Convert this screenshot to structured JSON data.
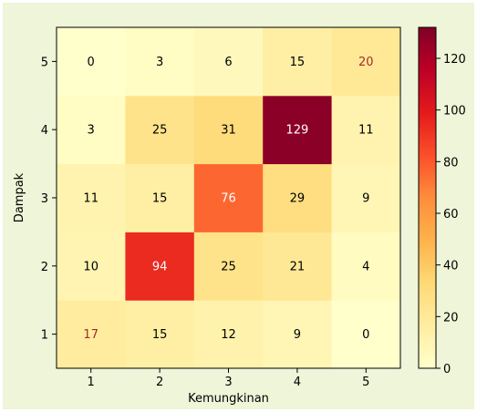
{
  "chart_data": {
    "type": "heatmap",
    "x_categories": [
      "1",
      "2",
      "3",
      "4",
      "5"
    ],
    "y_categories": [
      "1",
      "2",
      "3",
      "4",
      "5"
    ],
    "xlabel": "Kemungkinan",
    "ylabel": "Dampak",
    "values": [
      [
        17,
        15,
        12,
        9,
        0
      ],
      [
        10,
        94,
        25,
        21,
        4
      ],
      [
        11,
        15,
        76,
        29,
        9
      ],
      [
        3,
        25,
        31,
        129,
        11
      ],
      [
        0,
        3,
        6,
        15,
        20
      ]
    ],
    "value_order": "rows from Dampak 1 (bottom) to Dampak 5 (top), columns Kemungkinan 1 to 5",
    "colorbar": {
      "min": 0,
      "max": 132,
      "ticks": [
        0,
        20,
        40,
        60,
        80,
        100,
        120
      ],
      "colormap": "YlOrRd"
    },
    "cell_text_colors": {
      "0": "#000000",
      "3": "#000000",
      "6": "#000000",
      "15": "#000000",
      "20": "#a52a2a",
      "25": "#000000",
      "31": "#000000",
      "129": "#ffffff",
      "11": "#000000",
      "76": "#ffffff",
      "29": "#000000",
      "9": "#000000",
      "10": "#000000",
      "94": "#ffffff",
      "21": "#000000",
      "4": "#000000",
      "17": "#a52a2a",
      "12": "#000000"
    }
  }
}
